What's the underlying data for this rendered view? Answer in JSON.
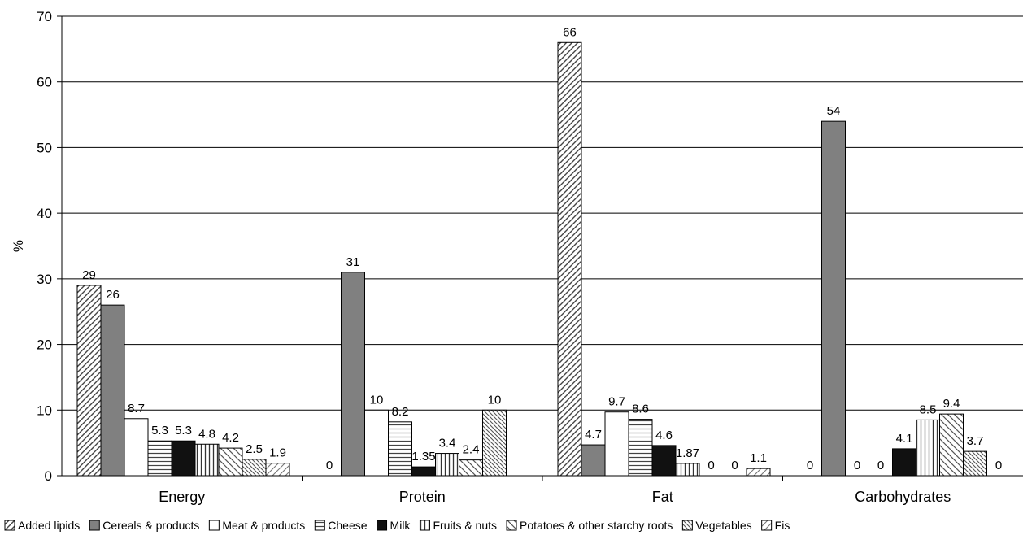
{
  "chart_data": {
    "type": "bar",
    "ylabel": "%",
    "ylim": [
      0,
      70
    ],
    "yticks": [
      0,
      10,
      20,
      30,
      40,
      50,
      60,
      70
    ],
    "grid": true,
    "legend_position": "bottom",
    "categories": [
      "Energy",
      "Protein",
      "Fat",
      "Carbohydrates"
    ],
    "series": [
      {
        "name": "Added lipids",
        "pattern": "diag-up",
        "values": [
          29,
          0,
          66,
          0
        ],
        "labels": [
          "29",
          "0",
          "66",
          "0"
        ]
      },
      {
        "name": "Cereals & products",
        "pattern": "gray",
        "values": [
          26,
          31,
          4.7,
          54
        ],
        "labels": [
          "26",
          "31",
          "4.7",
          "54"
        ]
      },
      {
        "name": "Meat & products",
        "pattern": "white",
        "values": [
          8.7,
          10,
          9.7,
          0
        ],
        "labels": [
          "8.7",
          "10",
          "9.7",
          "0"
        ]
      },
      {
        "name": "Cheese",
        "pattern": "horizontal",
        "values": [
          5.3,
          8.2,
          8.6,
          0
        ],
        "labels": [
          "5.3",
          "8.2",
          "8.6",
          "0"
        ]
      },
      {
        "name": "Milk",
        "pattern": "black",
        "values": [
          5.3,
          1.35,
          4.6,
          4.1
        ],
        "labels": [
          "5.3",
          "1.35",
          "4.6",
          "4.1"
        ]
      },
      {
        "name": "Fruits & nuts",
        "pattern": "vertical",
        "values": [
          4.8,
          3.4,
          1.87,
          8.5
        ],
        "labels": [
          "4.8",
          "3.4",
          "1.87",
          "8.5"
        ]
      },
      {
        "name": "Potatoes & other starchy roots",
        "pattern": "diag-down",
        "values": [
          4.2,
          2.4,
          0,
          9.4
        ],
        "labels": [
          "4.2",
          "2.4",
          "0",
          "9.4"
        ]
      },
      {
        "name": "Vegetables",
        "pattern": "diag-down-dense",
        "values": [
          2.5,
          10,
          0,
          3.7
        ],
        "labels": [
          "2.5",
          "10",
          "0",
          "3.7"
        ]
      },
      {
        "name": "Fis",
        "pattern": "diag-up-light",
        "values": [
          1.9,
          0,
          1.1,
          0
        ],
        "labels": [
          "1.9",
          "",
          "1.1",
          "0"
        ]
      }
    ]
  }
}
